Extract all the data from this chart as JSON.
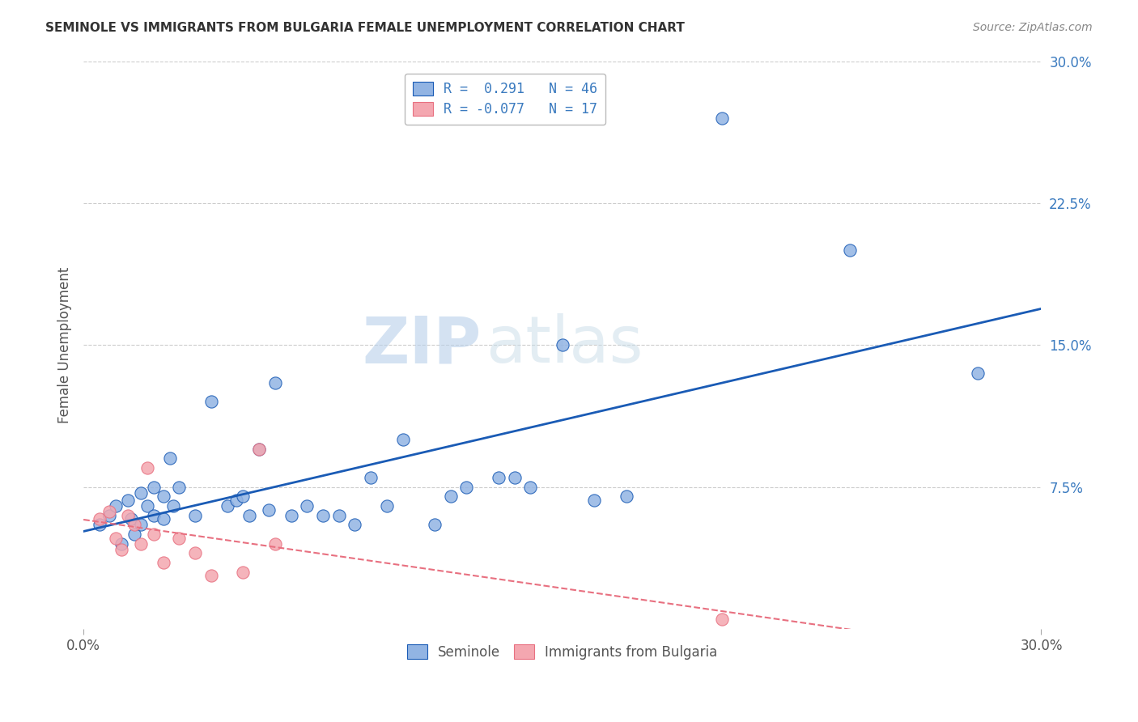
{
  "title": "SEMINOLE VS IMMIGRANTS FROM BULGARIA FEMALE UNEMPLOYMENT CORRELATION CHART",
  "source": "Source: ZipAtlas.com",
  "ylabel": "Female Unemployment",
  "x_min": 0.0,
  "x_max": 0.3,
  "y_min": 0.0,
  "y_max": 0.3,
  "y_ticks": [
    0.075,
    0.15,
    0.225,
    0.3
  ],
  "y_tick_labels": [
    "7.5%",
    "15.0%",
    "22.5%",
    "30.0%"
  ],
  "seminole_color": "#92b4e3",
  "bulgaria_color": "#f4a7b0",
  "seminole_trend_color": "#1a5bb5",
  "bulgaria_trend_color": "#e87080",
  "legend_r1": "R =  0.291   N = 46",
  "legend_r2": "R = -0.077   N = 17",
  "legend_label1": "Seminole",
  "legend_label2": "Immigrants from Bulgaria",
  "watermark_zip": "ZIP",
  "watermark_atlas": "atlas",
  "seminole_x": [
    0.005,
    0.008,
    0.01,
    0.012,
    0.014,
    0.015,
    0.016,
    0.018,
    0.018,
    0.02,
    0.022,
    0.022,
    0.025,
    0.025,
    0.027,
    0.028,
    0.03,
    0.035,
    0.04,
    0.045,
    0.048,
    0.05,
    0.052,
    0.055,
    0.058,
    0.06,
    0.065,
    0.07,
    0.075,
    0.08,
    0.085,
    0.09,
    0.095,
    0.1,
    0.11,
    0.115,
    0.12,
    0.13,
    0.135,
    0.14,
    0.15,
    0.16,
    0.17,
    0.2,
    0.24,
    0.28
  ],
  "seminole_y": [
    0.055,
    0.06,
    0.065,
    0.045,
    0.068,
    0.058,
    0.05,
    0.072,
    0.055,
    0.065,
    0.075,
    0.06,
    0.07,
    0.058,
    0.09,
    0.065,
    0.075,
    0.06,
    0.12,
    0.065,
    0.068,
    0.07,
    0.06,
    0.095,
    0.063,
    0.13,
    0.06,
    0.065,
    0.06,
    0.06,
    0.055,
    0.08,
    0.065,
    0.1,
    0.055,
    0.07,
    0.075,
    0.08,
    0.08,
    0.075,
    0.15,
    0.068,
    0.07,
    0.27,
    0.2,
    0.135
  ],
  "bulgaria_x": [
    0.005,
    0.008,
    0.01,
    0.012,
    0.014,
    0.016,
    0.018,
    0.02,
    0.022,
    0.025,
    0.03,
    0.035,
    0.04,
    0.05,
    0.055,
    0.06,
    0.2
  ],
  "bulgaria_y": [
    0.058,
    0.062,
    0.048,
    0.042,
    0.06,
    0.055,
    0.045,
    0.085,
    0.05,
    0.035,
    0.048,
    0.04,
    0.028,
    0.03,
    0.095,
    0.045,
    0.005
  ],
  "background_color": "#ffffff",
  "grid_color": "#cccccc"
}
